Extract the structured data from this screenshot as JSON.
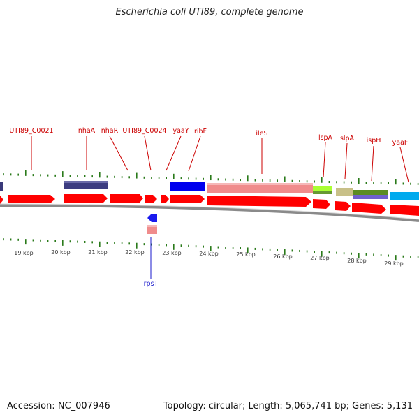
{
  "title": "Escherichia coli UTI89, complete genome",
  "footer": {
    "accession": "Accession: NC_007946",
    "topology": "Topology: circular; Length: 5,065,741 bp; Genes: 5,131"
  },
  "colors": {
    "gene_label": "#cc0000",
    "rev_gene_label": "#1a1acc",
    "tick": "#2a7a1a",
    "gene_arrow": "#ff0000",
    "backbone": "#8a8a8a"
  },
  "scale": {
    "unit": "kbp",
    "labels": [
      "19 kbp",
      "20 kbp",
      "21 kbp",
      "22 kbp",
      "23 kbp",
      "24 kbp",
      "25 kbp",
      "26 kbp",
      "27 kbp",
      "28 kbp",
      "29 kbp"
    ]
  },
  "genes_forward": [
    "UTI89_C0021",
    "nhaA",
    "nhaR",
    "UTI89_C0024",
    "yaaY",
    "ribF",
    "ileS",
    "lspA",
    "slpA",
    "ispH",
    "yaaF"
  ],
  "genes_reverse": [
    "rpsT"
  ]
}
